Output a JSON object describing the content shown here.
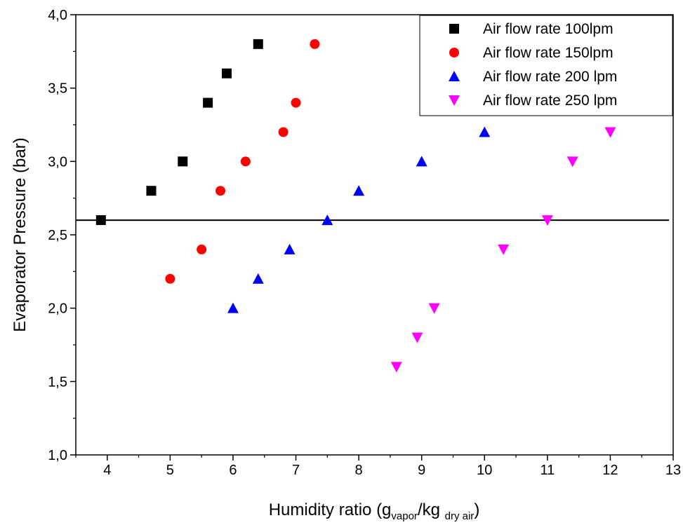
{
  "chart_data": {
    "type": "scatter",
    "xlabel": {
      "main": "Humidity ratio (g",
      "sub1": "vapor",
      "mid": "/kg ",
      "sub2": "dry air",
      "end": ")"
    },
    "ylabel": "Evaporator Pressure (bar)",
    "xlim": [
      3.5,
      13
    ],
    "ylim": [
      1.0,
      4.0
    ],
    "x_ticks": [
      {
        "value": 4,
        "label": "4"
      },
      {
        "value": 5,
        "label": "5"
      },
      {
        "value": 6,
        "label": "6"
      },
      {
        "value": 7,
        "label": "7"
      },
      {
        "value": 8,
        "label": "8"
      },
      {
        "value": 9,
        "label": "9"
      },
      {
        "value": 10,
        "label": "10"
      },
      {
        "value": 11,
        "label": "11"
      },
      {
        "value": 12,
        "label": "12"
      },
      {
        "value": 13,
        "label": "13"
      }
    ],
    "y_ticks": [
      {
        "value": 1.0,
        "label": "1,0"
      },
      {
        "value": 1.5,
        "label": "1,5"
      },
      {
        "value": 2.0,
        "label": "2,0"
      },
      {
        "value": 2.5,
        "label": "2,5"
      },
      {
        "value": 3.0,
        "label": "3,0"
      },
      {
        "value": 3.5,
        "label": "3,5"
      },
      {
        "value": 4.0,
        "label": "4,0"
      }
    ],
    "grid": false,
    "legend_position": "top-right",
    "reference_line": {
      "y": 2.6,
      "color": "#000000"
    },
    "series": [
      {
        "name": "Air flow rate 100lpm",
        "marker": "square",
        "color": "#000000",
        "x": [
          3.9,
          4.7,
          5.2,
          5.6,
          5.9,
          6.4
        ],
        "y": [
          2.6,
          2.8,
          3.0,
          3.4,
          3.6,
          3.8
        ]
      },
      {
        "name": "Air flow rate 150lpm",
        "marker": "circle",
        "color": "#ff0000",
        "x": [
          5.0,
          5.5,
          5.8,
          6.2,
          6.8,
          7.0,
          7.3
        ],
        "y": [
          2.2,
          2.4,
          2.8,
          3.0,
          3.2,
          3.4,
          3.8
        ]
      },
      {
        "name": "Air flow rate 200 lpm",
        "marker": "triangle-up",
        "color": "#0000ff",
        "x": [
          6.0,
          6.4,
          6.9,
          7.5,
          8.0,
          9.0,
          10.0
        ],
        "y": [
          2.0,
          2.2,
          2.4,
          2.6,
          2.8,
          3.0,
          3.2
        ]
      },
      {
        "name": "Air flow rate 250 lpm",
        "marker": "triangle-down",
        "color": "#ff00ff",
        "x": [
          8.6,
          8.93,
          9.2,
          10.3,
          11.0,
          11.4,
          12.0
        ],
        "y": [
          1.6,
          1.8,
          2.0,
          2.4,
          2.6,
          3.0,
          3.2
        ]
      }
    ]
  }
}
